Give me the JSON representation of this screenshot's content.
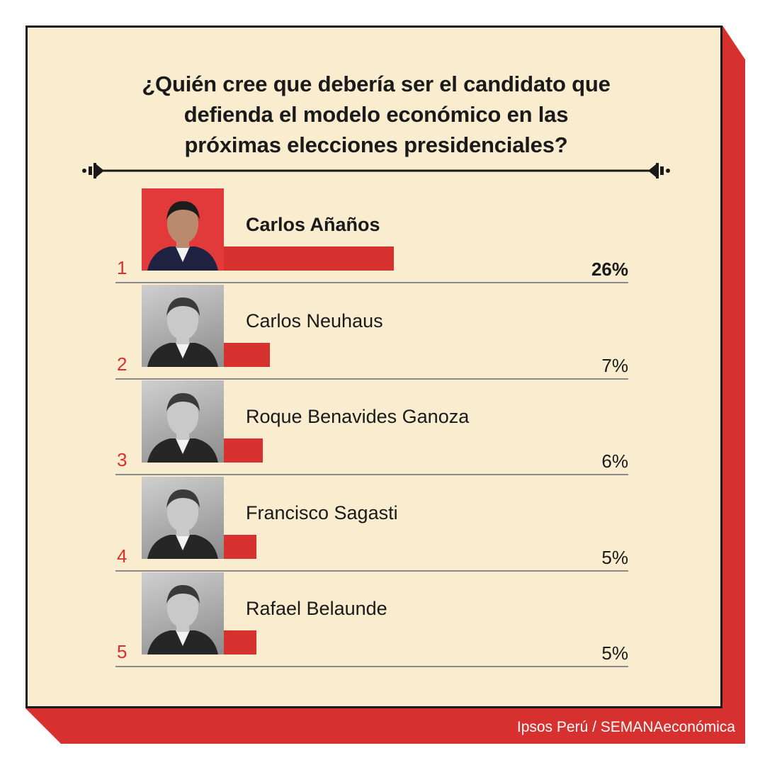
{
  "title_lines": [
    "¿Quién cree que debería ser el candidato que",
    "defienda el modelo económico en las",
    "próximas elecciones presidenciales?"
  ],
  "source": "Ipsos Perú / SEMANAeconómica",
  "colors": {
    "accent": "#d6312e",
    "card": "#f9eccf",
    "ink": "#1a1a1a"
  },
  "chart_data": {
    "type": "bar",
    "orientation": "horizontal",
    "categories": [
      "Carlos Añaños",
      "Carlos Neuhaus",
      "Roque Benavides Ganoza",
      "Francisco Sagasti",
      "Rafael Belaunde"
    ],
    "ranks": [
      "1",
      "2",
      "3",
      "4",
      "5"
    ],
    "values": [
      26,
      7,
      6,
      5,
      5
    ],
    "value_labels": [
      "26%",
      "7%",
      "6%",
      "5%",
      "5%"
    ],
    "unit": "%",
    "grid": false,
    "legend": "none"
  }
}
